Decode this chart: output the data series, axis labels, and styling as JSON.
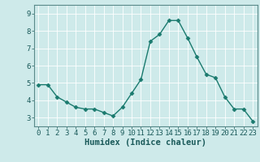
{
  "x": [
    0,
    1,
    2,
    3,
    4,
    5,
    6,
    7,
    8,
    9,
    10,
    11,
    12,
    13,
    14,
    15,
    16,
    17,
    18,
    19,
    20,
    21,
    22,
    23
  ],
  "y": [
    4.9,
    4.9,
    4.2,
    3.9,
    3.6,
    3.5,
    3.5,
    3.3,
    3.1,
    3.6,
    4.4,
    5.2,
    7.4,
    7.8,
    8.6,
    8.6,
    7.6,
    6.5,
    5.5,
    5.3,
    4.2,
    3.5,
    3.5,
    2.8
  ],
  "line_color": "#1a7a6e",
  "marker": "D",
  "markersize": 2.5,
  "linewidth": 1.0,
  "background_color": "#ceeaea",
  "grid_color": "#ffffff",
  "xlabel": "Humidex (Indice chaleur)",
  "xlabel_fontsize": 7.5,
  "tick_fontsize": 6.5,
  "ylim": [
    2.5,
    9.5
  ],
  "xlim": [
    -0.5,
    23.5
  ],
  "yticks": [
    3,
    4,
    5,
    6,
    7,
    8,
    9
  ],
  "xticks": [
    0,
    1,
    2,
    3,
    4,
    5,
    6,
    7,
    8,
    9,
    10,
    11,
    12,
    13,
    14,
    15,
    16,
    17,
    18,
    19,
    20,
    21,
    22,
    23
  ],
  "spine_color": "#5a8a8a",
  "tick_color": "#1a5a5a"
}
